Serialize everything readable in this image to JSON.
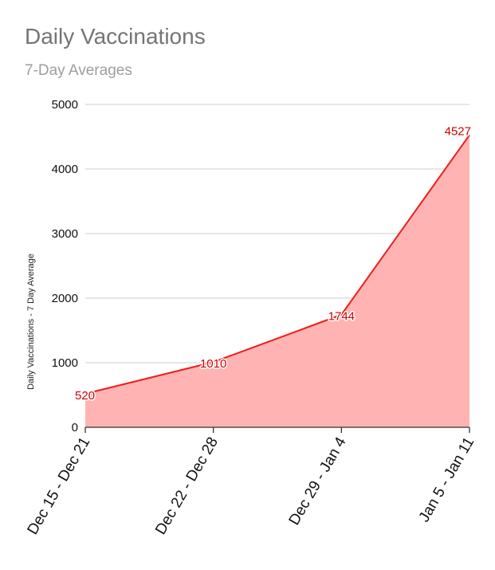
{
  "chart_data": {
    "type": "area",
    "title": "Daily Vaccinations",
    "subtitle": "7-Day Averages",
    "xlabel": "",
    "ylabel": "Daily Vaccinations - 7 Day Average",
    "categories": [
      "Dec 15 - Dec 21",
      "Dec 22 - Dec 28",
      "Dec 29 - Jan 4",
      "Jan 5 - Jan 11"
    ],
    "series": [
      {
        "name": "",
        "values": [
          520,
          1010,
          1744,
          4527
        ],
        "data_labels": [
          "520",
          "1010",
          "1744",
          "4527"
        ]
      }
    ],
    "ylim": [
      0,
      5000
    ],
    "yticks": [
      0,
      1000,
      2000,
      3000,
      4000,
      5000
    ],
    "grid": true,
    "colors": {
      "line": "#ee1c1c",
      "fill": "#ffb3b3",
      "grid": "#cccccc",
      "axis": "#333333",
      "label": "#cc0000"
    }
  }
}
